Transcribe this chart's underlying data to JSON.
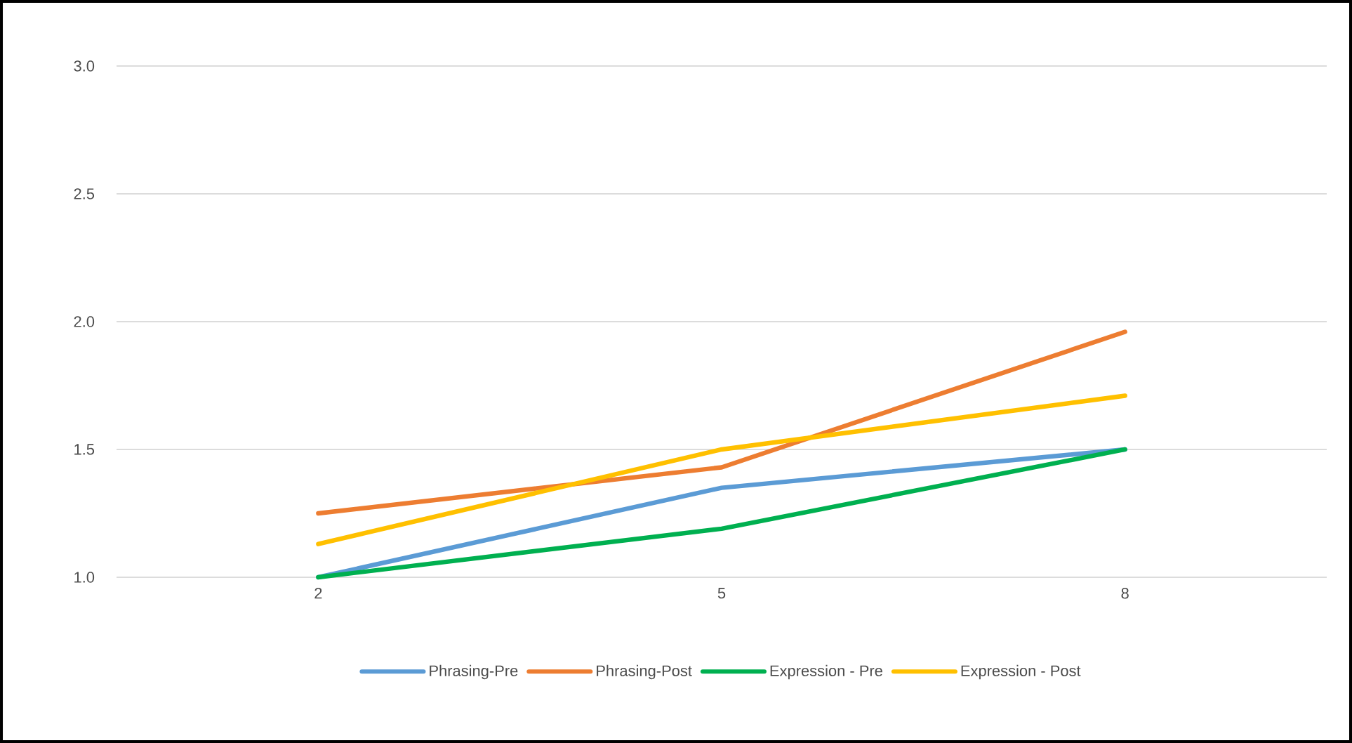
{
  "chart_data": {
    "type": "line",
    "categories": [
      "2",
      "5",
      "8"
    ],
    "series": [
      {
        "name": "Phrasing-Pre",
        "color": "#5b9bd5",
        "values": [
          1.0,
          1.35,
          1.5
        ]
      },
      {
        "name": "Phrasing-Post",
        "color": "#ed7d31",
        "values": [
          1.25,
          1.43,
          1.96
        ]
      },
      {
        "name": "Expression - Pre",
        "color": "#00b050",
        "values": [
          1.0,
          1.19,
          1.5
        ]
      },
      {
        "name": "Expression - Post",
        "color": "#ffc000",
        "values": [
          1.13,
          1.5,
          1.71
        ]
      }
    ],
    "ylim": [
      1.0,
      3.0
    ],
    "yticks": [
      {
        "value": 1.0,
        "label": "1.0"
      },
      {
        "value": 1.5,
        "label": "1.5"
      },
      {
        "value": 2.0,
        "label": "2.0"
      },
      {
        "value": 2.5,
        "label": "2.5"
      },
      {
        "value": 3.0,
        "label": "3.0"
      }
    ],
    "grid": "y",
    "legend": "bottom",
    "marker": "none",
    "line_style": "solid"
  }
}
